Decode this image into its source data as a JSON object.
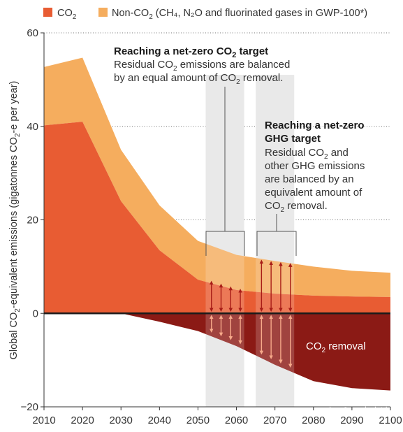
{
  "chart_data": {
    "type": "area",
    "ylabel": {
      "pre": "Global CO",
      "sub1": "2",
      "mid": "-equivalent emissions (gigatonnes CO",
      "sub2": "2",
      "post": "-e per year)"
    },
    "x": [
      2010,
      2020,
      2030,
      2040,
      2050,
      2060,
      2070,
      2080,
      2090,
      2100
    ],
    "xlim": [
      2010,
      2100
    ],
    "ylim": [
      -20,
      60
    ],
    "y_ticks": [
      60,
      40,
      20,
      0,
      -20
    ],
    "y_tick_labels": [
      "60",
      "40",
      "20",
      "0",
      "−20"
    ],
    "grid": "dotted horizontal",
    "colors": {
      "co2": "#e85c33",
      "nonco2": "#f5ad5e",
      "removal": "#8b1a15",
      "band": "#e4e4e4",
      "arrow": "#a81d17",
      "arrow_light": "#f7a98a",
      "zero_line": "#1a1a1a"
    },
    "series": [
      {
        "name": {
          "pre": "CO",
          "sub": "2",
          "post": ""
        },
        "key": "co2",
        "x": [
          2010,
          2020,
          2030,
          2040,
          2050,
          2060,
          2070,
          2080,
          2090,
          2100
        ],
        "values": [
          40.2,
          41,
          24,
          13.5,
          7.2,
          5,
          4.2,
          3.8,
          3.6,
          3.5
        ]
      },
      {
        "name": {
          "pre": "Non-CO",
          "sub": "2",
          "post": " (CH₄, N₂O and fluorinated gases in GWP-100*)"
        },
        "key": "nonco2",
        "x": [
          2010,
          2020,
          2030,
          2040,
          2050,
          2060,
          2070,
          2080,
          2090,
          2100
        ],
        "values": [
          12.5,
          13.7,
          11,
          9.6,
          8.3,
          7.5,
          7,
          6.2,
          5.5,
          5.2
        ]
      },
      {
        "key": "removal",
        "x": [
          2010,
          2020,
          2030,
          2040,
          2050,
          2060,
          2070,
          2080,
          2090,
          2100
        ],
        "values": [
          0,
          0,
          0,
          -1.8,
          -3.8,
          -7,
          -11,
          -14.5,
          -16,
          -16.5
        ]
      }
    ],
    "bands": [
      {
        "id": "net-zero-co2",
        "x0": 2052,
        "x1": 2062
      },
      {
        "id": "net-zero-ghg",
        "x0": 2065,
        "x1": 2075
      }
    ],
    "arrows": [
      {
        "x": 2053.5,
        "top": 7.0
      },
      {
        "x": 2056,
        "top": 6.4
      },
      {
        "x": 2058.5,
        "top": 5.8
      },
      {
        "x": 2061,
        "top": 5.3
      },
      {
        "x": 2066.5,
        "top": 11.5
      },
      {
        "x": 2069,
        "top": 11.2
      },
      {
        "x": 2071.5,
        "top": 11.0
      },
      {
        "x": 2074,
        "top": 10.8
      }
    ],
    "annotations": {
      "net_zero_co2": {
        "title": {
          "pre": "Reaching a net-zero CO",
          "sub": "2",
          "post": " target"
        },
        "lines": [
          {
            "pre": "Residual CO",
            "sub": "2",
            "post": " emissions are balanced"
          },
          {
            "pre": "by an equal amount of CO",
            "sub": "2",
            "post": " removal."
          }
        ]
      },
      "net_zero_ghg": {
        "title_lines": [
          "Reaching a net-zero",
          "GHG target"
        ],
        "lines": [
          {
            "pre": "Residual CO",
            "sub": "2",
            "post": " and"
          },
          {
            "pre": "other GHG emissions",
            "sub": "",
            "post": ""
          },
          {
            "pre": "are balanced by an",
            "sub": "",
            "post": ""
          },
          {
            "pre": "equivalent amount of",
            "sub": "",
            "post": ""
          },
          {
            "pre": "CO",
            "sub": "2",
            "post": " removal."
          }
        ]
      },
      "removal_label": {
        "pre": "CO",
        "sub": "2",
        "post": " removal"
      }
    },
    "watermark": "知乎 @青木达"
  }
}
